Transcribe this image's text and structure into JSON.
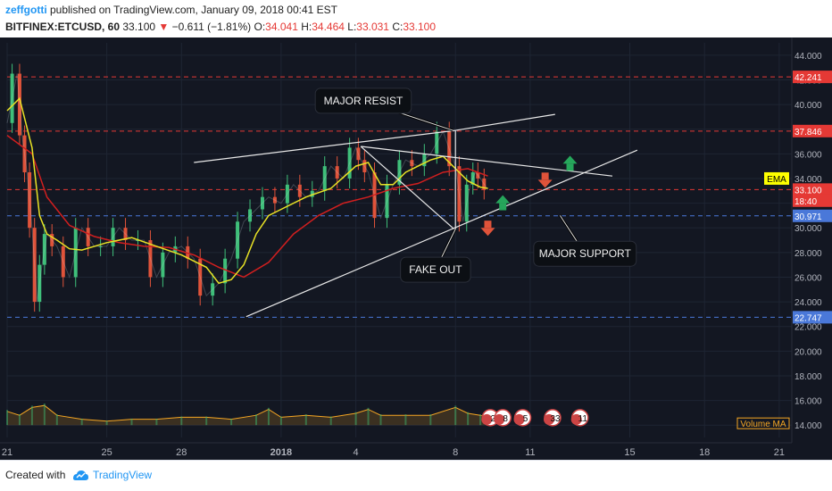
{
  "header": {
    "user": "zeffgotti",
    "published": " published on TradingView.com, January 09, 2018 00:41 EST",
    "symbol": "BITFINEX:ETCUSD, 60",
    "price": "33.100",
    "change": "−0.611 (−1.81%)",
    "o_label": "O:",
    "o_value": "34.041",
    "h_label": "H:",
    "h_value": "34.464",
    "l_label": "L:",
    "l_value": "33.031",
    "c_label": "C:",
    "c_value": "33.100"
  },
  "footer": {
    "created_with": "Created with",
    "brand": "TradingView"
  },
  "colors": {
    "background": "#131722",
    "grid": "#1e2533",
    "ema_yellow": "#e8e225",
    "ma_red": "#d11f1f",
    "resistance_red": "#e53935",
    "support_blue": "#4a78d9",
    "up_arrow": "#26a65b",
    "down_arrow": "#e0533a",
    "volume_orange": "#f5a623"
  },
  "chart_data": {
    "type": "line",
    "title": "",
    "xlabel": "",
    "ylabel": "",
    "ylim": [
      13.0,
      45.0
    ],
    "y_ticks": [
      "44.000",
      "42.000",
      "40.000",
      "38.000",
      "36.000",
      "34.000",
      "32.000",
      "30.000",
      "28.000",
      "26.000",
      "24.000",
      "22.000",
      "20.000",
      "18.000",
      "16.000",
      "14.000"
    ],
    "x_ticks": [
      {
        "label": "21",
        "x": 0
      },
      {
        "label": "25",
        "x": 4
      },
      {
        "label": "28",
        "x": 7
      },
      {
        "label": "2018",
        "x": 11
      },
      {
        "label": "4",
        "x": 14
      },
      {
        "label": "8",
        "x": 18
      },
      {
        "label": "11",
        "x": 21
      },
      {
        "label": "15",
        "x": 25
      },
      {
        "label": "18",
        "x": 28
      },
      {
        "label": "21",
        "x": 31
      }
    ],
    "series": [
      {
        "kind": "price",
        "x": [
          0,
          0.4,
          0.6,
          0.8,
          1.0,
          1.2,
          1.4,
          1.6,
          2.0,
          2.5,
          3.0,
          3.5,
          4.0,
          4.5,
          5.0,
          5.5,
          6.0,
          6.5,
          7.0,
          7.5,
          8.0,
          8.5,
          9.0,
          9.5,
          10.0,
          10.5,
          11.0,
          11.5,
          12.0,
          12.5,
          13.0,
          13.5,
          14.0,
          14.2,
          14.5,
          15.0,
          15.5,
          16.0,
          16.5,
          17.0,
          17.5,
          18.0,
          18.3,
          18.6,
          18.8,
          19.0,
          19.3
        ],
        "values": [
          38.5,
          42.5,
          37.5,
          34.5,
          30.0,
          24.0,
          27.0,
          29.5,
          28.5,
          26.0,
          30.0,
          28.5,
          28.5,
          30.0,
          29.0,
          29.0,
          26.0,
          28.0,
          28.5,
          27.5,
          24.5,
          25.5,
          27.5,
          30.5,
          31.5,
          32.5,
          32.0,
          33.5,
          32.5,
          33.0,
          35.0,
          34.0,
          36.5,
          35.5,
          34.5,
          30.8,
          33.5,
          35.5,
          35.0,
          36.0,
          37.8,
          35.0,
          30.5,
          33.5,
          34.5,
          34.0,
          33.1
        ]
      },
      {
        "kind": "ema",
        "name": "EMA",
        "x": [
          0,
          0.5,
          1.0,
          1.3,
          1.6,
          2.0,
          2.5,
          3.0,
          4.0,
          5.0,
          6.0,
          7.0,
          8.0,
          8.5,
          9.0,
          9.5,
          10.0,
          10.5,
          11.0,
          12.0,
          13.0,
          14.0,
          14.5,
          15.0,
          15.5,
          16.0,
          16.5,
          17.0,
          17.5,
          18.0,
          18.5,
          19.0,
          19.3
        ],
        "values": [
          39.5,
          40.5,
          36.5,
          31.0,
          29.5,
          29.0,
          28.3,
          28.2,
          28.8,
          29.2,
          28.5,
          27.8,
          26.8,
          25.5,
          25.8,
          27.0,
          29.5,
          31.0,
          31.5,
          32.5,
          33.2,
          35.0,
          35.3,
          33.5,
          33.5,
          34.5,
          35.0,
          35.5,
          35.8,
          34.8,
          33.8,
          33.3,
          33.2
        ]
      },
      {
        "kind": "ma",
        "x": [
          0,
          1.0,
          1.6,
          2.5,
          3.5,
          4.5,
          5.5,
          6.5,
          7.5,
          8.5,
          9.5,
          10.5,
          11.5,
          12.5,
          13.5,
          14.5,
          15.5,
          16.5,
          17.5,
          18.5,
          19.3
        ],
        "values": [
          37.5,
          36.0,
          32.5,
          30.2,
          29.3,
          28.8,
          28.5,
          28.4,
          27.8,
          26.8,
          26.0,
          27.2,
          29.5,
          31.0,
          32.0,
          32.5,
          33.2,
          33.6,
          34.5,
          34.8,
          34.2
        ]
      },
      {
        "kind": "volume",
        "name": "Volume MA",
        "x": [
          0,
          0.5,
          1.0,
          1.5,
          2.0,
          3.0,
          4.0,
          5.0,
          6.0,
          7.0,
          8.0,
          9.0,
          10.0,
          10.5,
          11.0,
          12.0,
          13.0,
          14.0,
          14.5,
          15.0,
          16.0,
          17.0,
          18.0,
          18.5,
          19.0,
          19.3
        ],
        "values": [
          0.7,
          0.5,
          0.9,
          1.0,
          0.5,
          0.3,
          0.2,
          0.3,
          0.3,
          0.4,
          0.4,
          0.3,
          0.5,
          0.8,
          0.4,
          0.5,
          0.4,
          0.6,
          0.8,
          0.5,
          0.5,
          0.5,
          0.9,
          0.6,
          0.5,
          0.4
        ]
      }
    ],
    "horizontal_levels": [
      {
        "value": 42.241,
        "color": "#e53935"
      },
      {
        "value": 37.846,
        "color": "#e53935"
      },
      {
        "value": 33.1,
        "color": "#e53935"
      },
      {
        "value": 30.971,
        "color": "#4a78d9"
      },
      {
        "value": 22.747,
        "color": "#4a78d9"
      }
    ],
    "price_labels": [
      {
        "text": "42.241",
        "value": 42.241,
        "bg": "#e53935"
      },
      {
        "text": "37.846",
        "value": 37.846,
        "bg": "#e53935"
      },
      {
        "text": "33.100",
        "value": 33.1,
        "bg": "#e53935"
      },
      {
        "text": "18:40",
        "value": 32.2,
        "bg": "#e53935"
      },
      {
        "text": "30.971",
        "value": 30.971,
        "bg": "#4a78d9"
      },
      {
        "text": "22.747",
        "value": 22.747,
        "bg": "#4a78d9"
      }
    ],
    "ema_label": {
      "text": "EMA",
      "value": 34.0
    },
    "volume_label": "Volume MA",
    "trendlines": [
      {
        "x1": 9.6,
        "y1": 22.8,
        "x2": 25.3,
        "y2": 36.3
      },
      {
        "x1": 14.2,
        "y1": 36.6,
        "x2": 24.3,
        "y2": 34.2
      },
      {
        "x1": 7.5,
        "y1": 35.3,
        "x2": 18.0,
        "y2": 37.9
      },
      {
        "x1": 18.0,
        "y1": 37.9,
        "x2": 22.0,
        "y2": 39.2
      },
      {
        "x1": 14.2,
        "y1": 36.6,
        "x2": 18.0,
        "y2": 29.8
      },
      {
        "x1": 18.0,
        "y1": 29.8,
        "x2": 18.0,
        "y2": 37.9
      }
    ],
    "annotations": [
      {
        "text": "MAJOR RESIST",
        "x": 14.3,
        "y": 40.3,
        "ptr_x": 17.9,
        "ptr_y": 37.9
      },
      {
        "text": "FAKE OUT",
        "x": 17.2,
        "y": 26.6,
        "ptr_x": 18.0,
        "ptr_y": 29.9
      },
      {
        "text": "MAJOR SUPPORT",
        "x": 23.2,
        "y": 27.9,
        "ptr_x": 22.2,
        "ptr_y": 31.0
      }
    ],
    "arrows": [
      {
        "dir": "up",
        "x": 22.6,
        "y": 35.2,
        "color": "#26a65b"
      },
      {
        "dir": "down",
        "x": 21.6,
        "y": 33.9,
        "color": "#e0533a"
      },
      {
        "dir": "up",
        "x": 19.9,
        "y": 32.0,
        "color": "#26a65b"
      },
      {
        "dir": "down",
        "x": 19.3,
        "y": 30.0,
        "color": "#e0533a"
      }
    ],
    "event_badges": [
      {
        "text": "2",
        "x": 19.4
      },
      {
        "text": "8",
        "x": 19.9
      },
      {
        "text": "5",
        "x": 20.7
      },
      {
        "text": "33",
        "x": 21.9
      },
      {
        "text": "11",
        "x": 23.0
      }
    ]
  }
}
